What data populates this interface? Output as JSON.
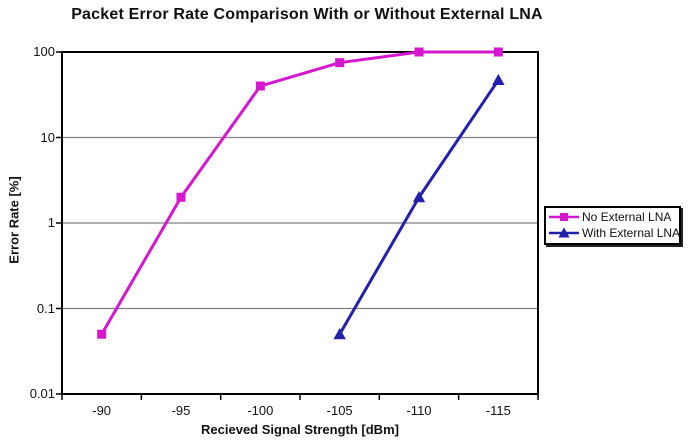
{
  "chart_data": {
    "type": "line",
    "title": "Packet Error Rate Comparison With or Without External LNA",
    "xlabel": "Recieved Signal Strength [dBm]",
    "ylabel": "Error Rate [%]",
    "x_categories": [
      "-90",
      "-95",
      "-100",
      "-105",
      "-110",
      "-115"
    ],
    "y_scale": "log",
    "ylim": [
      0.01,
      100
    ],
    "y_ticks": [
      "100",
      "10",
      "1",
      "0.1",
      "0.01"
    ],
    "grid": "horizontal-major-only",
    "legend_position": "right-middle-outside",
    "axis_color": "#000000",
    "gridline_color": "#808080",
    "background_color": "#ffffff",
    "series": [
      {
        "name": "No External LNA",
        "color": "#D517CF",
        "marker": "square",
        "values": [
          0.05,
          2,
          40,
          75,
          100,
          100
        ]
      },
      {
        "name": "With External LNA",
        "color": "#2121AC",
        "marker": "triangle-up",
        "values": [
          null,
          null,
          null,
          0.05,
          2,
          47
        ]
      }
    ]
  }
}
